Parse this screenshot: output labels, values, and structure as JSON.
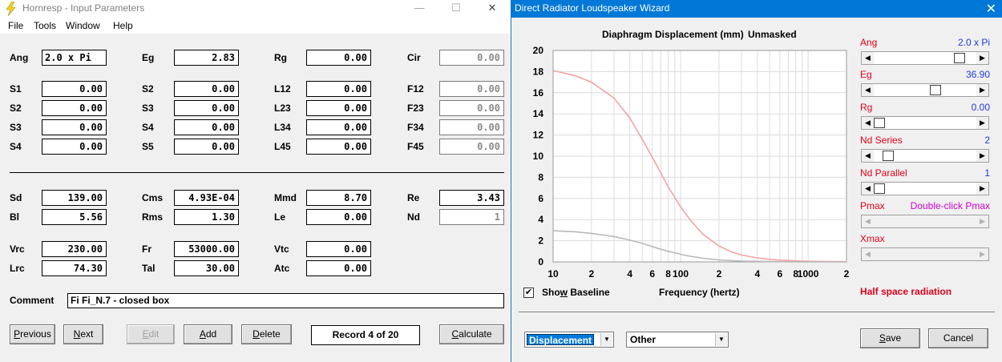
{
  "left_window": {
    "title": "Hornresp - Input Parameters",
    "controls": {
      "minimize": "—",
      "maximize": "☐",
      "close": "✕"
    },
    "menu": [
      "File",
      "Tools",
      "Window",
      "Help"
    ],
    "params": {
      "Ang": "2.0 x Pi",
      "Eg": "2.83",
      "Rg": "0.00",
      "Cir": "0.00",
      "S1": "0.00",
      "S2_a": "0.00",
      "L12": "0.00",
      "F12": "0.00",
      "S2_b": "0.00",
      "S3_a": "0.00",
      "L23": "0.00",
      "F23": "0.00",
      "S3_b": "0.00",
      "S4_a": "0.00",
      "L34": "0.00",
      "F34": "0.00",
      "S4_b": "0.00",
      "S5": "0.00",
      "L45": "0.00",
      "F45": "0.00",
      "Sd": "139.00",
      "Cms": "4.93E-04",
      "Mmd": "8.70",
      "Re": "3.43",
      "Bl": "5.56",
      "Rms": "1.30",
      "Le": "0.00",
      "Nd": "1",
      "Vrc": "230.00",
      "Fr": "53000.00",
      "Vtc": "0.00",
      "Lrc": "74.30",
      "Tal": "30.00",
      "Atc": "0.00"
    },
    "labels": {
      "Ang": "Ang",
      "Eg": "Eg",
      "Rg": "Rg",
      "Cir": "Cir",
      "S1": "S1",
      "S2": "S2",
      "S3": "S3",
      "S4": "S4",
      "S5": "S5",
      "L12": "L12",
      "L23": "L23",
      "L34": "L34",
      "L45": "L45",
      "F12": "F12",
      "F23": "F23",
      "F34": "F34",
      "F45": "F45",
      "Sd": "Sd",
      "Cms": "Cms",
      "Mmd": "Mmd",
      "Re": "Re",
      "Bl": "Bl",
      "Rms": "Rms",
      "Le": "Le",
      "Nd": "Nd",
      "Vrc": "Vrc",
      "Fr": "Fr",
      "Vtc": "Vtc",
      "Lrc": "Lrc",
      "Tal": "Tal",
      "Atc": "Atc",
      "Comment": "Comment"
    },
    "comment": "Fi Fi_N.7 - closed box",
    "buttons": {
      "previous": {
        "pre": "",
        "u": "P",
        "post": "revious"
      },
      "next": {
        "pre": "",
        "u": "N",
        "post": "ext"
      },
      "edit": {
        "pre": "",
        "u": "E",
        "post": "dit"
      },
      "add": {
        "pre": "",
        "u": "A",
        "post": "dd"
      },
      "delete": {
        "pre": "",
        "u": "D",
        "post": "elete"
      },
      "calculate": {
        "pre": "",
        "u": "C",
        "post": "alculate"
      }
    },
    "record": "Record 4 of 20"
  },
  "right_window": {
    "title": "Direct Radiator Loudspeaker Wizard",
    "close": "✕",
    "plot_title": "Diaphragm Displacement (mm)",
    "plot_mode": "Unmasked",
    "show_baseline": {
      "pre": "Sho",
      "u": "w",
      "post": " Baseline",
      "checked": true
    },
    "xlabel": "Frequency (hertz)",
    "radiation": "Half space radiation",
    "sliders": {
      "ang": {
        "label": "Ang",
        "value": "2.0 x Pi",
        "pos": 0.88
      },
      "eg": {
        "label": "Eg",
        "value": "36.90",
        "pos": 0.61
      },
      "rg": {
        "label": "Rg",
        "value": "0.00",
        "pos": 0.0
      },
      "nd_series": {
        "label": "Nd  Series",
        "value": "2",
        "pos": 0.1
      },
      "nd_parallel": {
        "label": "Nd  Parallel",
        "value": "1",
        "pos": 0.0
      },
      "pmax": {
        "label": "Pmax",
        "value": "Double-click Pmax"
      },
      "xmax": {
        "label": "Xmax",
        "value": ""
      }
    },
    "combo1": "Displacement",
    "combo2": "Other",
    "buttons": {
      "save": {
        "pre": "",
        "u": "S",
        "post": "ave"
      },
      "cancel": {
        "pre": "",
        "u": "",
        "post": "Cancel"
      }
    }
  },
  "chart_data": {
    "type": "line",
    "title": "Diaphragm Displacement (mm)",
    "xlabel": "Frequency (hertz)",
    "ylabel": "",
    "x_scale": "log",
    "xlim": [
      10,
      2000
    ],
    "ylim": [
      0,
      20
    ],
    "yticks": [
      0,
      2,
      4,
      6,
      8,
      10,
      12,
      14,
      16,
      18,
      20
    ],
    "xtick_labels": [
      {
        "f": 10,
        "t": "10"
      },
      {
        "f": 20,
        "t": "2"
      },
      {
        "f": 40,
        "t": "4"
      },
      {
        "f": 60,
        "t": "6"
      },
      {
        "f": 80,
        "t": "8"
      },
      {
        "f": 100,
        "t": "100"
      },
      {
        "f": 200,
        "t": "2"
      },
      {
        "f": 400,
        "t": "4"
      },
      {
        "f": 600,
        "t": "6"
      },
      {
        "f": 800,
        "t": "8"
      },
      {
        "f": 1000,
        "t": "1000"
      },
      {
        "f": 2000,
        "t": "2"
      }
    ],
    "grid": true,
    "series": [
      {
        "color": "#f4a3a3",
        "x": [
          10,
          15,
          20,
          30,
          40,
          50,
          60,
          70,
          80,
          100,
          120,
          150,
          200,
          250,
          300,
          400,
          500,
          600,
          800,
          1000,
          1500,
          2000
        ],
        "y": [
          18.1,
          17.6,
          17.0,
          15.5,
          13.6,
          11.6,
          9.9,
          8.4,
          7.1,
          5.2,
          3.9,
          2.6,
          1.5,
          0.95,
          0.65,
          0.38,
          0.24,
          0.17,
          0.1,
          0.06,
          0.03,
          0.02
        ]
      },
      {
        "color": "#b9b9b9",
        "x": [
          10,
          15,
          20,
          30,
          40,
          50,
          60,
          70,
          80,
          100,
          120,
          150,
          200,
          250,
          300,
          400,
          500,
          600,
          800,
          1000,
          1500,
          2000
        ],
        "y": [
          2.95,
          2.85,
          2.7,
          2.4,
          2.05,
          1.75,
          1.45,
          1.2,
          1.0,
          0.72,
          0.52,
          0.34,
          0.19,
          0.12,
          0.08,
          0.05,
          0.03,
          0.02,
          0.01,
          0.01,
          0.0,
          0.0
        ]
      }
    ]
  }
}
